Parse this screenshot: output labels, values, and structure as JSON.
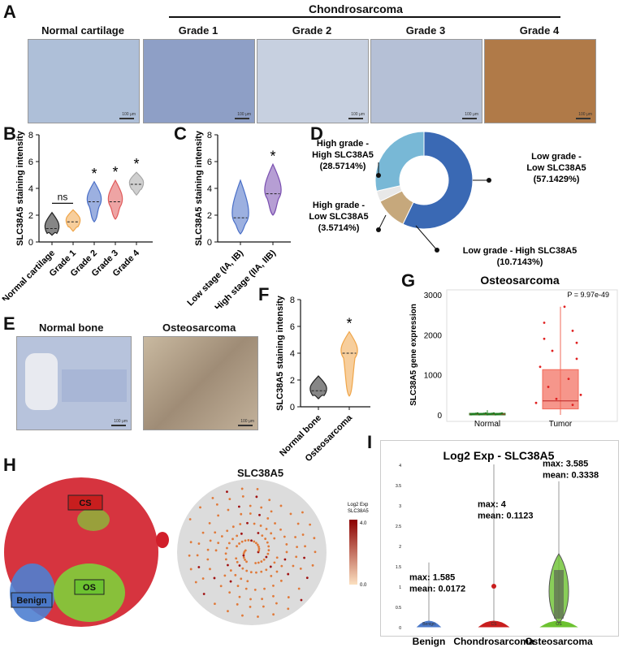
{
  "panels": {
    "A": "A",
    "B": "B",
    "C": "C",
    "D": "D",
    "E": "E",
    "F": "F",
    "G": "G",
    "H": "H",
    "I": "I"
  },
  "panelA": {
    "group_title": "Chondrosarcoma",
    "tiles": [
      {
        "label": "Normal cartilage",
        "scale": "100 μm",
        "bg": "#aebfd8"
      },
      {
        "label": "Grade 1",
        "scale": "100 μm",
        "bg": "#8e9fc6"
      },
      {
        "label": "Grade 2",
        "scale": "100 μm",
        "bg": "#c7d0e0"
      },
      {
        "label": "Grade 3",
        "scale": "100 μm",
        "bg": "#b5c0d6"
      },
      {
        "label": "Grade 4",
        "scale": "100 μm",
        "bg": "#b07a48"
      }
    ]
  },
  "chart_data": [
    {
      "type": "violin",
      "panel": "B",
      "ylabel": "SLC38A5 staining intensity",
      "ylim": [
        0,
        8
      ],
      "yticks": [
        "0",
        "2",
        "4",
        "6",
        "8"
      ],
      "categories": [
        "Normal cartilage",
        "Grade 1",
        "Grade 2",
        "Grade 3",
        "Grade 4"
      ],
      "medians": [
        1,
        1.5,
        3,
        3,
        4.3
      ],
      "ranges": [
        [
          0.5,
          2.2
        ],
        [
          0.8,
          2.4
        ],
        [
          1.5,
          4.5
        ],
        [
          1.7,
          4.6
        ],
        [
          3.5,
          5.2
        ]
      ],
      "colors": [
        "#222222",
        "#f0a64a",
        "#4a6fc7",
        "#e05a5a",
        "#a8a8a8"
      ],
      "annotations": [
        {
          "text": "ns",
          "between": [
            0,
            1
          ]
        },
        {
          "text": "*",
          "on": 2
        },
        {
          "text": "*",
          "on": 3
        },
        {
          "text": "*",
          "on": 4
        }
      ]
    },
    {
      "type": "violin",
      "panel": "C",
      "ylabel": "SLC38A5 staining intensity",
      "ylim": [
        0,
        8
      ],
      "yticks": [
        "0",
        "2",
        "4",
        "6",
        "8"
      ],
      "categories": [
        "Low stage (IA, IB)",
        "High stage (IIA, IIB)"
      ],
      "medians": [
        1.8,
        3.6
      ],
      "ranges": [
        [
          0.6,
          4.6
        ],
        [
          2,
          5.8
        ]
      ],
      "colors": [
        "#4a6fc7",
        "#7a4fb0"
      ],
      "annotations": [
        {
          "text": "*",
          "on": 1
        }
      ]
    },
    {
      "type": "pie",
      "panel": "D",
      "slices": [
        {
          "label1": "Low grade -",
          "label2": "Low SLC38A5",
          "pct": "(57.1429%)",
          "value": 57.1429,
          "color": "#3a69b4"
        },
        {
          "label1": "Low grade - High SLC38A5",
          "label2": "",
          "pct": "(10.7143%)",
          "value": 10.7143,
          "color": "#c6a87c"
        },
        {
          "label1": "High grade -",
          "label2": "Low SLC38A5",
          "pct": "(3.5714%)",
          "value": 3.5714,
          "color": "#e8e8e8"
        },
        {
          "label1": "High grade -",
          "label2": "High SLC38A5",
          "pct": "(28.5714%)",
          "value": 28.5714,
          "color": "#78b8d6"
        }
      ]
    },
    {
      "type": "violin",
      "panel": "F",
      "ylabel": "SLC38A5 staining intensity",
      "ylim": [
        0,
        8
      ],
      "yticks": [
        "0",
        "2",
        "4",
        "6",
        "8"
      ],
      "categories": [
        "Normal bone",
        "Osteosarcoma"
      ],
      "medians": [
        1.2,
        4
      ],
      "ranges": [
        [
          0.6,
          2.3
        ],
        [
          0.8,
          5.6
        ]
      ],
      "colors": [
        "#222222",
        "#f0a64a"
      ],
      "annotations": [
        {
          "text": "*",
          "on": 1
        }
      ]
    },
    {
      "type": "box",
      "panel": "G",
      "title": "Osteosarcoma",
      "ylabel": "SLC38A5 gene expression",
      "ylim": [
        0,
        3000
      ],
      "yticks": [
        "0",
        "1000",
        "2000",
        "3000"
      ],
      "categories": [
        "Normal",
        "Tumor"
      ],
      "boxes": [
        {
          "q1": 5,
          "median": 20,
          "q3": 40,
          "min": 0,
          "max": 120,
          "color": "#2e8b2e"
        },
        {
          "q1": 150,
          "median": 350,
          "q3": 1130,
          "min": 0,
          "max": 2700,
          "color": "#f26a5a"
        }
      ],
      "pvalue": "P = 9.97e-49"
    },
    {
      "type": "violin",
      "panel": "I",
      "title": "Log2 Exp - SLC38A5",
      "ylim": [
        0,
        4
      ],
      "yticks": [
        "0",
        "0.5",
        "1",
        "1.5",
        "2",
        "2.5",
        "3",
        "3.5",
        "4"
      ],
      "categories": [
        "Benign",
        "Chondrosarcoma",
        "Osteosarcoma"
      ],
      "short_labels": [
        "Benign",
        "CS",
        "OS"
      ],
      "stats": [
        {
          "max": "max: 1.585",
          "mean": "mean: 0.0172"
        },
        {
          "max": "max: 4",
          "mean": "mean: 0.1123"
        },
        {
          "max": "max: 3.585",
          "mean": "mean: 0.3338"
        }
      ],
      "colors": [
        "#4a78c8",
        "#c81e1e",
        "#6cc230"
      ]
    }
  ],
  "panelE": {
    "tiles": [
      {
        "label": "Normal bone",
        "scale": "100 μm"
      },
      {
        "label": "Osteosarcoma",
        "scale": "100 μm"
      }
    ]
  },
  "panelH": {
    "right_title": "SLC38A5",
    "cluster_labels": [
      {
        "text": "CS",
        "color": "#c81e1e"
      },
      {
        "text": "OS",
        "color": "#6cc230"
      },
      {
        "text": "Benign",
        "color": "#4a78c8"
      }
    ],
    "legend_title1": "Log2 Exp",
    "legend_title2": "SLC38A5",
    "legend_max": "4.0",
    "legend_min": "0.0"
  }
}
